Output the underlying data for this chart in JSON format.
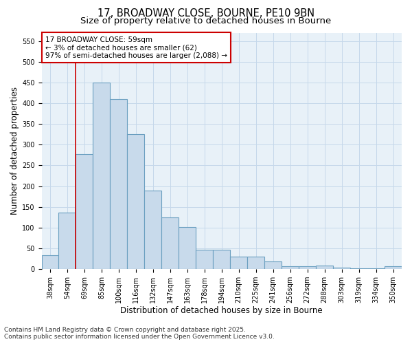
{
  "title_line1": "17, BROADWAY CLOSE, BOURNE, PE10 9BN",
  "title_line2": "Size of property relative to detached houses in Bourne",
  "xlabel": "Distribution of detached houses by size in Bourne",
  "ylabel": "Number of detached properties",
  "categories": [
    "38sqm",
    "54sqm",
    "69sqm",
    "85sqm",
    "100sqm",
    "116sqm",
    "132sqm",
    "147sqm",
    "163sqm",
    "178sqm",
    "194sqm",
    "210sqm",
    "225sqm",
    "241sqm",
    "256sqm",
    "272sqm",
    "288sqm",
    "303sqm",
    "319sqm",
    "334sqm",
    "350sqm"
  ],
  "values": [
    33,
    136,
    278,
    450,
    410,
    325,
    190,
    125,
    101,
    46,
    46,
    30,
    30,
    19,
    7,
    7,
    9,
    4,
    2,
    2,
    6
  ],
  "bar_color": "#c8daeb",
  "bar_edge_color": "#6a9fc0",
  "vline_color": "#cc0000",
  "annotation_line1": "17 BROADWAY CLOSE: 59sqm",
  "annotation_line2": "← 3% of detached houses are smaller (62)",
  "annotation_line3": "97% of semi-detached houses are larger (2,088) →",
  "annotation_box_facecolor": "#ffffff",
  "annotation_box_edgecolor": "#cc0000",
  "ylim": [
    0,
    570
  ],
  "yticks": [
    0,
    50,
    100,
    150,
    200,
    250,
    300,
    350,
    400,
    450,
    500,
    550
  ],
  "grid_color": "#c5d8ea",
  "background_color": "#e8f1f8",
  "footer_text": "Contains HM Land Registry data © Crown copyright and database right 2025.\nContains public sector information licensed under the Open Government Licence v3.0.",
  "title_fontsize": 10.5,
  "subtitle_fontsize": 9.5,
  "axis_label_fontsize": 8.5,
  "tick_fontsize": 7,
  "annotation_fontsize": 7.5,
  "footer_fontsize": 6.5
}
